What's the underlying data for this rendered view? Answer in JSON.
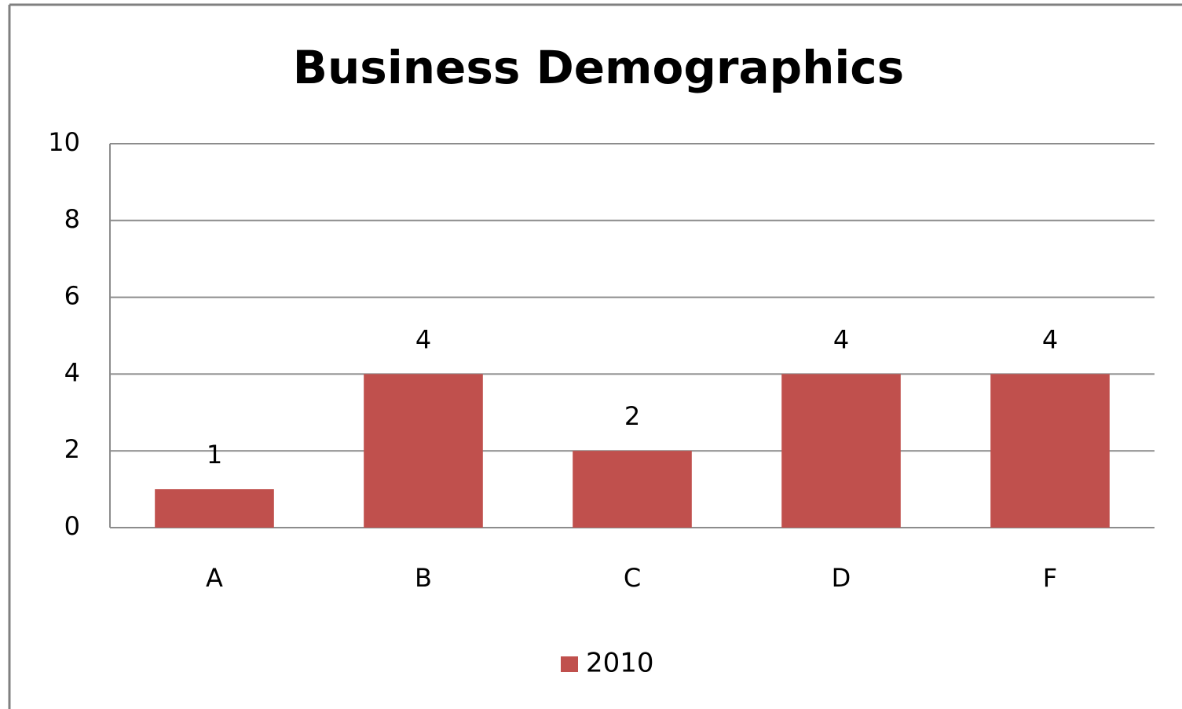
{
  "chart_data": {
    "type": "bar",
    "title": "Business Demographics",
    "categories": [
      "A",
      "B",
      "C",
      "D",
      "F"
    ],
    "series": [
      {
        "name": "2010",
        "color": "#c0504d",
        "values": [
          1,
          4,
          2,
          4,
          4
        ]
      }
    ],
    "ylim": [
      0,
      10
    ],
    "yticks": [
      0,
      2,
      4,
      6,
      8,
      10
    ],
    "grid": true,
    "legend": "bottom"
  }
}
